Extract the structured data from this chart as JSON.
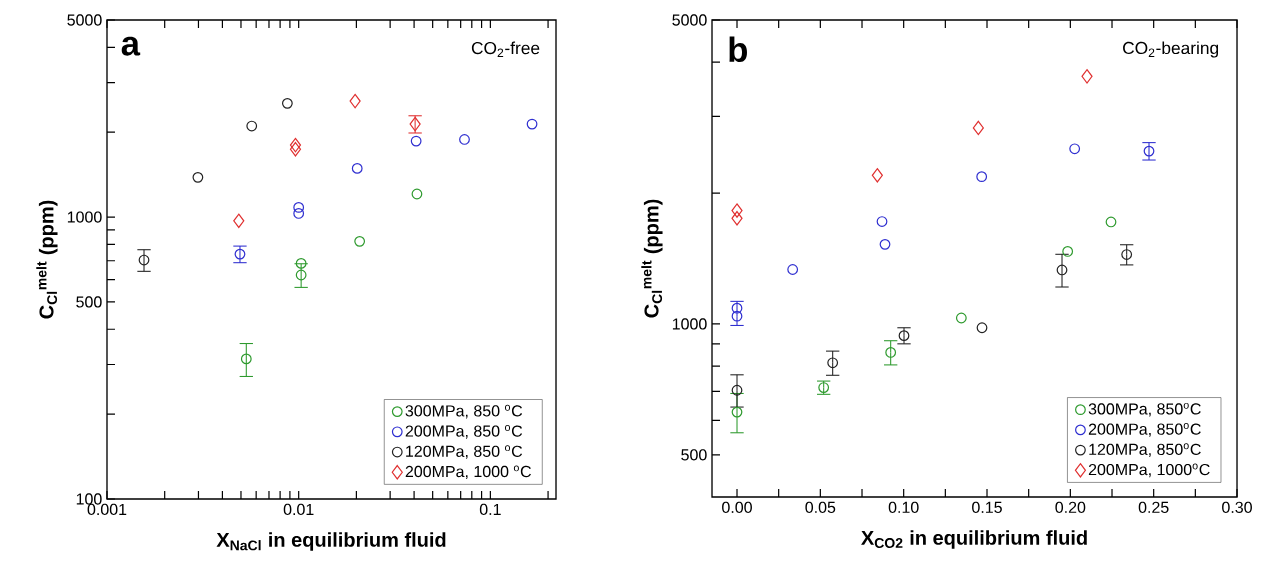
{
  "chart_data": [
    {
      "type": "scatter",
      "xlabel": "X$_{NaCl}$ in equilibrium fluid",
      "ylabel": "C$_{Cl}$$^{melt}$ (ppm)",
      "annotations": [
        "a",
        "CO$_{2}$-free"
      ],
      "log": "xy",
      "legend": "bottom right",
      "xlim": [
        0.001,
        0.22
      ],
      "ylim": [
        100,
        5000
      ],
      "xticks": [
        0.001,
        {
          "value": 0.002,
          "label": null
        },
        {
          "value": 0.003,
          "label": null
        },
        {
          "value": 0.004,
          "label": null
        },
        {
          "value": 0.005,
          "label": null
        },
        {
          "value": 0.006,
          "label": null
        },
        {
          "value": 0.007,
          "label": null
        },
        {
          "value": 0.008,
          "label": null
        },
        {
          "value": 0.009,
          "label": null
        },
        0.01,
        {
          "value": 0.02,
          "label": null
        },
        {
          "value": 0.03,
          "label": null
        },
        {
          "value": 0.04,
          "label": null
        },
        {
          "value": 0.05,
          "label": null
        },
        {
          "value": 0.06,
          "label": null
        },
        {
          "value": 0.07,
          "label": null
        },
        {
          "value": 0.08,
          "label": null
        },
        {
          "value": 0.09,
          "label": null
        },
        0.1,
        {
          "value": 0.2,
          "label": null
        }
      ],
      "yticks": [
        100,
        {
          "value": 200,
          "label": null
        },
        {
          "value": 300,
          "label": null
        },
        {
          "value": 400,
          "label": null
        },
        500,
        {
          "value": 600,
          "label": null
        },
        {
          "value": 700,
          "label": null
        },
        {
          "value": 800,
          "label": null
        },
        {
          "value": 900,
          "label": null
        },
        1000,
        {
          "value": 2000,
          "label": null
        },
        {
          "value": 3000,
          "label": null
        },
        {
          "value": 4000,
          "label": null
        },
        5000
      ],
      "series": [
        {
          "name": "300MPa, 850 $^{o}$C",
          "color": "#2e9a2e",
          "marker": "circle",
          "x": [
            0.00533,
            0.0103,
            0.0103,
            0.0208,
            0.0414
          ],
          "values": [
            314,
            685,
            623,
            820,
            1207
          ],
          "errors": [
            42,
            null,
            60,
            null,
            null
          ]
        },
        {
          "name": "200MPa, 850 $^{o}$C",
          "color": "#2f2fd0",
          "marker": "circle",
          "x": [
            0.00494,
            0.01,
            0.01,
            0.0202,
            0.041,
            0.0733,
            0.165
          ],
          "values": [
            739,
            1082,
            1030,
            1488,
            1860,
            1885,
            2137
          ],
          "errors": [
            50,
            null,
            null,
            null,
            null,
            null,
            null
          ]
        },
        {
          "name": "120MPa, 850 $^{o}$C",
          "color": "#222222",
          "marker": "circle",
          "x": [
            0.00156,
            0.00298,
            0.00569,
            0.00873
          ],
          "values": [
            704,
            1383,
            2103,
            2531
          ],
          "errors": [
            62,
            null,
            null,
            null
          ]
        },
        {
          "name": "200MPa, 1000 $^{o}$C",
          "color": "#e03030",
          "marker": "diamond",
          "x": [
            0.00487,
            0.00962,
            0.00962,
            0.0197,
            0.0405
          ],
          "values": [
            970,
            1800,
            1740,
            2578,
            2137
          ],
          "errors": [
            null,
            null,
            null,
            null,
            150
          ]
        }
      ]
    },
    {
      "type": "scatter",
      "xlabel": "X$_{CO2}$ in equilibrium fluid",
      "ylabel": "C$_{Cl}$$^{melt}$ (ppm)",
      "annotations": [
        "b",
        "CO$_{2}$-bearing"
      ],
      "log": "y",
      "legend": "bottom right",
      "xlim": [
        -0.015,
        0.3
      ],
      "ylim": [
        400,
        5000
      ],
      "xticks": [
        {
          "value": 0,
          "label": "0.00"
        },
        {
          "value": 0.025,
          "label": null
        },
        {
          "value": 0.05,
          "label": "0.05"
        },
        {
          "value": 0.075,
          "label": null
        },
        {
          "value": 0.1,
          "label": "0.10"
        },
        {
          "value": 0.125,
          "label": null
        },
        {
          "value": 0.15,
          "label": "0.15"
        },
        {
          "value": 0.175,
          "label": null
        },
        {
          "value": 0.2,
          "label": "0.20"
        },
        {
          "value": 0.225,
          "label": null
        },
        {
          "value": 0.25,
          "label": "0.25"
        },
        {
          "value": 0.275,
          "label": null
        },
        {
          "value": 0.3,
          "label": "0.30"
        }
      ],
      "yticks": [
        500,
        {
          "value": 600,
          "label": null
        },
        {
          "value": 700,
          "label": null
        },
        {
          "value": 800,
          "label": null
        },
        {
          "value": 900,
          "label": null
        },
        1000,
        {
          "value": 2000,
          "label": null
        },
        {
          "value": 3000,
          "label": null
        },
        {
          "value": 4000,
          "label": null
        },
        5000
      ],
      "series": [
        {
          "name": "300MPa, 850$^{o}$C",
          "color": "#2e9a2e",
          "marker": "circle",
          "x": [
            0,
            0.052,
            0.0922,
            0.1346,
            0.1984,
            0.2244
          ],
          "values": [
            627,
            714,
            860,
            1032,
            1468,
            1716
          ],
          "errors": [
            65,
            25,
            55,
            null,
            null,
            null
          ]
        },
        {
          "name": "200MPa, 850$^{o}$C",
          "color": "#2f2fd0",
          "marker": "circle",
          "x": [
            0,
            0,
            0.0334,
            0.087,
            0.0888,
            0.1468,
            0.2026,
            0.2472
          ],
          "values": [
            1087,
            1042,
            1334,
            1720,
            1524,
            2181,
            2528,
            2497
          ],
          "errors": [
            null,
            [
              992,
              1127
            ],
            null,
            null,
            null,
            null,
            null,
            115
          ]
        },
        {
          "name": "120MPa, 850$^{o}$C",
          "color": "#222222",
          "marker": "circle",
          "x": [
            0,
            0.0574,
            0.1002,
            0.147,
            0.195,
            0.2338
          ],
          "values": [
            704,
            814,
            940,
            980,
            1331,
            1444
          ],
          "errors": [
            60,
            52,
            40,
            null,
            115,
            77
          ]
        },
        {
          "name": "200MPa, 1000$^{o}$C",
          "color": "#e03030",
          "marker": "diamond",
          "x": [
            0,
            0,
            0.0842,
            0.1448,
            0.21
          ],
          "values": [
            1823,
            1750,
            2197,
            2823,
            3710
          ],
          "errors": [
            null,
            null,
            null,
            null,
            null
          ]
        }
      ]
    }
  ]
}
